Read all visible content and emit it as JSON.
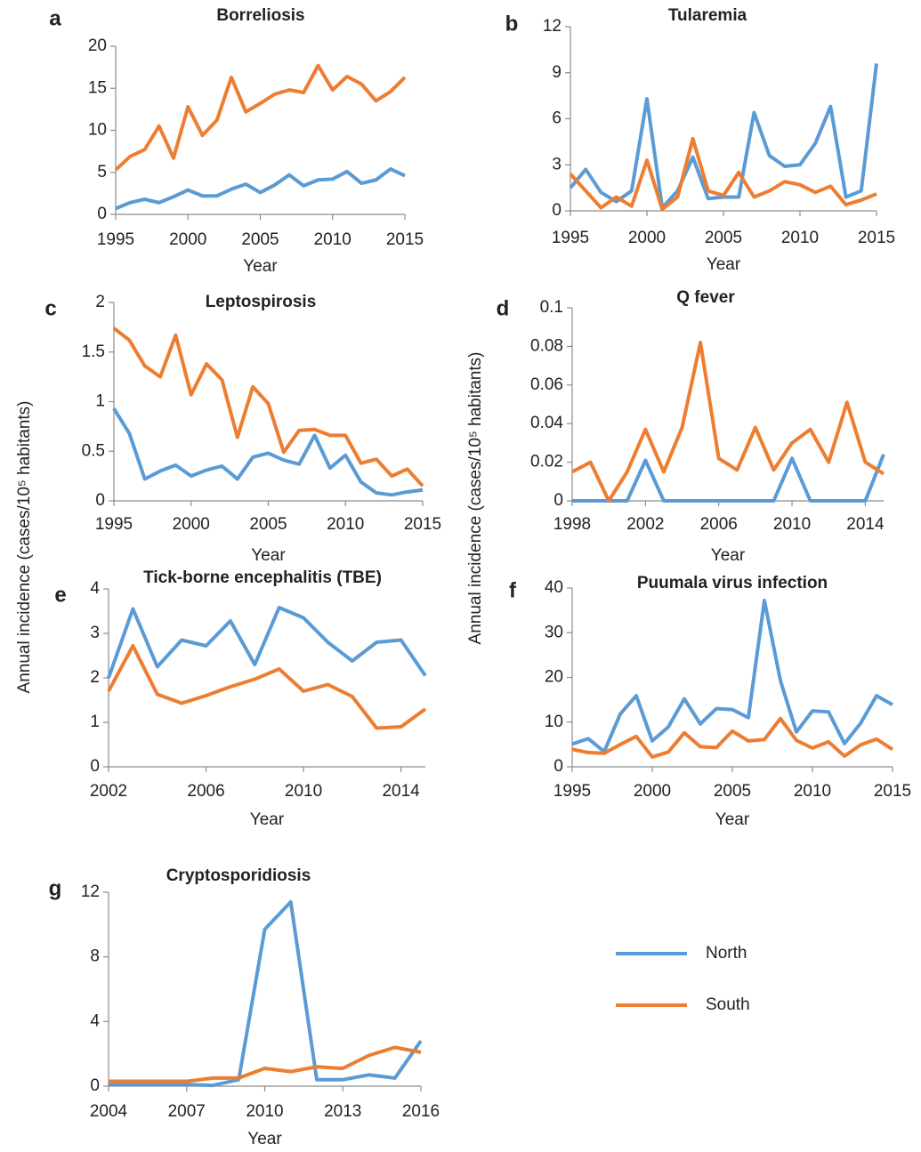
{
  "y_axis_label": "Annual incidence  (cases/10⁵ habitants)",
  "chart_data": [
    {
      "type": "line",
      "label": "a",
      "title": "Borreliosis",
      "x_label": "Year",
      "x": [
        1995,
        1996,
        1997,
        1998,
        1999,
        2000,
        2001,
        2002,
        2003,
        2004,
        2005,
        2006,
        2007,
        2008,
        2009,
        2010,
        2011,
        2012,
        2013,
        2014,
        2015
      ],
      "xlim": [
        1995,
        2015
      ],
      "xticks": [
        1995,
        2000,
        2005,
        2010,
        2015
      ],
      "ylim": [
        0,
        20
      ],
      "yticks": [
        0,
        5,
        10,
        15,
        20
      ],
      "series": [
        {
          "name": "North",
          "color": "#5b9bd5",
          "values": [
            0.7,
            1.4,
            1.8,
            1.4,
            2.1,
            2.9,
            2.2,
            2.2,
            3.0,
            3.6,
            2.6,
            3.5,
            4.7,
            3.4,
            4.1,
            4.2,
            5.1,
            3.7,
            4.1,
            5.4,
            4.6
          ]
        },
        {
          "name": "South",
          "color": "#ed7d31",
          "values": [
            5.3,
            6.9,
            7.7,
            10.5,
            6.7,
            12.8,
            9.4,
            11.2,
            16.3,
            12.2,
            13.2,
            14.3,
            14.8,
            14.5,
            17.7,
            14.8,
            16.4,
            15.5,
            13.5,
            14.6,
            16.3
          ]
        }
      ]
    },
    {
      "type": "line",
      "label": "b",
      "title": "Tularemia",
      "x_label": "Year",
      "x": [
        1995,
        1996,
        1997,
        1998,
        1999,
        2000,
        2001,
        2002,
        2003,
        2004,
        2005,
        2006,
        2007,
        2008,
        2009,
        2010,
        2011,
        2012,
        2013,
        2014,
        2015
      ],
      "xlim": [
        1995,
        2015
      ],
      "xticks": [
        1995,
        2000,
        2005,
        2010,
        2015
      ],
      "ylim": [
        0,
        12
      ],
      "yticks": [
        0,
        3,
        6,
        9,
        12
      ],
      "series": [
        {
          "name": "North",
          "color": "#5b9bd5",
          "values": [
            1.5,
            2.7,
            1.2,
            0.6,
            1.3,
            7.3,
            0.2,
            1.3,
            3.5,
            0.8,
            0.9,
            0.9,
            6.4,
            3.6,
            2.9,
            3.0,
            4.4,
            6.8,
            0.9,
            1.3,
            9.6
          ]
        },
        {
          "name": "South",
          "color": "#ed7d31",
          "values": [
            2.4,
            1.3,
            0.2,
            0.9,
            0.3,
            3.3,
            0.1,
            0.9,
            4.7,
            1.3,
            1.0,
            2.5,
            0.9,
            1.3,
            1.9,
            1.7,
            1.2,
            1.6,
            0.4,
            0.7,
            1.1
          ]
        }
      ]
    },
    {
      "type": "line",
      "label": "c",
      "title": "Leptospirosis",
      "x_label": "Year",
      "x": [
        1995,
        1996,
        1997,
        1998,
        1999,
        2000,
        2001,
        2002,
        2003,
        2004,
        2005,
        2006,
        2007,
        2008,
        2009,
        2010,
        2011,
        2012,
        2013,
        2014,
        2015
      ],
      "xlim": [
        1995,
        2015
      ],
      "xticks": [
        1995,
        2000,
        2005,
        2010,
        2015
      ],
      "ylim": [
        0,
        2
      ],
      "yticks": [
        0,
        0.5,
        1,
        1.5,
        2
      ],
      "series": [
        {
          "name": "North",
          "color": "#5b9bd5",
          "values": [
            0.93,
            0.68,
            0.22,
            0.3,
            0.36,
            0.25,
            0.31,
            0.35,
            0.22,
            0.44,
            0.48,
            0.41,
            0.37,
            0.66,
            0.33,
            0.46,
            0.19,
            0.08,
            0.06,
            0.09,
            0.11
          ]
        },
        {
          "name": "South",
          "color": "#ed7d31",
          "values": [
            1.74,
            1.62,
            1.36,
            1.25,
            1.67,
            1.07,
            1.38,
            1.22,
            0.64,
            1.15,
            0.98,
            0.49,
            0.71,
            0.72,
            0.66,
            0.66,
            0.38,
            0.42,
            0.25,
            0.32,
            0.15
          ]
        }
      ]
    },
    {
      "type": "line",
      "label": "d",
      "title": "Q fever",
      "x_label": "Year",
      "x": [
        1998,
        1999,
        2000,
        2001,
        2002,
        2003,
        2004,
        2005,
        2006,
        2007,
        2008,
        2009,
        2010,
        2011,
        2012,
        2013,
        2014,
        2015
      ],
      "xlim": [
        1998,
        2015
      ],
      "xticks": [
        1998,
        2002,
        2006,
        2010,
        2014
      ],
      "ylim": [
        0,
        0.1
      ],
      "yticks": [
        0,
        0.02,
        0.04,
        0.06,
        0.08,
        0.1
      ],
      "series": [
        {
          "name": "North",
          "color": "#5b9bd5",
          "values": [
            0,
            0,
            0,
            0,
            0.021,
            0,
            0,
            0,
            0,
            0,
            0,
            0,
            0.022,
            0,
            0,
            0,
            0,
            0.024
          ]
        },
        {
          "name": "South",
          "color": "#ed7d31",
          "values": [
            0.015,
            0.02,
            0,
            0.015,
            0.037,
            0.015,
            0.038,
            0.082,
            0.022,
            0.016,
            0.038,
            0.016,
            0.03,
            0.037,
            0.02,
            0.051,
            0.02,
            0.014
          ]
        }
      ]
    },
    {
      "type": "line",
      "label": "e",
      "title": "Tick-borne encephalitis (TBE)",
      "x_label": "Year",
      "x": [
        2002,
        2003,
        2004,
        2005,
        2006,
        2007,
        2008,
        2009,
        2010,
        2011,
        2012,
        2013,
        2014,
        2015
      ],
      "xlim": [
        2002,
        2015
      ],
      "xticks": [
        2002,
        2006,
        2010,
        2014
      ],
      "ylim": [
        0,
        4
      ],
      "yticks": [
        0,
        1,
        2,
        3,
        4
      ],
      "series": [
        {
          "name": "North",
          "color": "#5b9bd5",
          "values": [
            2.0,
            3.55,
            2.25,
            2.85,
            2.72,
            3.28,
            2.3,
            3.58,
            3.35,
            2.8,
            2.38,
            2.8,
            2.85,
            2.05
          ]
        },
        {
          "name": "South",
          "color": "#ed7d31",
          "values": [
            1.7,
            2.72,
            1.63,
            1.43,
            1.6,
            1.8,
            1.97,
            2.2,
            1.7,
            1.85,
            1.58,
            0.87,
            0.9,
            1.3
          ]
        }
      ]
    },
    {
      "type": "line",
      "label": "f",
      "title": "Puumala virus infection",
      "x_label": "Year",
      "x": [
        1995,
        1996,
        1997,
        1998,
        1999,
        2000,
        2001,
        2002,
        2003,
        2004,
        2005,
        2006,
        2007,
        2008,
        2009,
        2010,
        2011,
        2012,
        2013,
        2014,
        2015
      ],
      "xlim": [
        1995,
        2015
      ],
      "xticks": [
        1995,
        2000,
        2005,
        2010,
        2015
      ],
      "ylim": [
        0,
        40
      ],
      "yticks": [
        0,
        10,
        20,
        30,
        40
      ],
      "series": [
        {
          "name": "North",
          "color": "#5b9bd5",
          "values": [
            5.1,
            6.3,
            3.4,
            11.8,
            15.9,
            5.8,
            8.9,
            15.2,
            9.6,
            13.0,
            12.8,
            11.0,
            37.2,
            19.3,
            7.8,
            12.5,
            12.3,
            5.2,
            9.7,
            15.9,
            13.9
          ]
        },
        {
          "name": "South",
          "color": "#ed7d31",
          "values": [
            3.9,
            3.2,
            3.0,
            5.0,
            6.8,
            2.2,
            3.3,
            7.6,
            4.5,
            4.3,
            8.0,
            5.8,
            6.1,
            10.8,
            5.9,
            4.2,
            5.6,
            2.4,
            4.9,
            6.2,
            3.9
          ]
        }
      ]
    },
    {
      "type": "line",
      "label": "g",
      "title": "Cryptosporidiosis",
      "x_label": "Year",
      "x": [
        2004,
        2005,
        2006,
        2007,
        2008,
        2009,
        2010,
        2011,
        2012,
        2013,
        2014,
        2015,
        2016
      ],
      "xlim": [
        2004,
        2016
      ],
      "xticks": [
        2004,
        2007,
        2010,
        2013,
        2016
      ],
      "ylim": [
        0,
        12
      ],
      "yticks": [
        0,
        4,
        8,
        12
      ],
      "series": [
        {
          "name": "North",
          "color": "#5b9bd5",
          "values": [
            0.1,
            0.1,
            0.1,
            0.1,
            0.05,
            0.4,
            9.7,
            11.4,
            0.4,
            0.4,
            0.7,
            0.5,
            2.8
          ]
        },
        {
          "name": "South",
          "color": "#ed7d31",
          "values": [
            0.3,
            0.3,
            0.3,
            0.3,
            0.5,
            0.5,
            1.1,
            0.9,
            1.2,
            1.1,
            1.9,
            2.4,
            2.1
          ]
        }
      ]
    }
  ]
}
